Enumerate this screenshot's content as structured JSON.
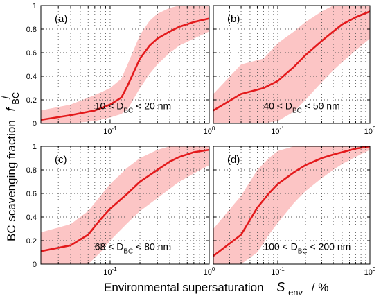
{
  "figure": {
    "ylabel_main": "BC scavenging fraction",
    "ylabel_symbol": "f",
    "ylabel_sub": "BC",
    "ylabel_sup": "j",
    "xlabel_main": "Environmental supersaturation",
    "xlabel_symbol": "S",
    "xlabel_sub": "env",
    "xlabel_unit": "/ %",
    "colors": {
      "line": "#e31a1c",
      "band": "#fcc5c5",
      "frame": "#000000",
      "grid": "#555555"
    }
  },
  "chart_data": [
    {
      "type": "area",
      "panel_label": "(a)",
      "annotation": {
        "prefix": "10 < D",
        "sub": "BC",
        "suffix": " < 20 nm"
      },
      "x_scale": "log",
      "xlim": [
        0.02,
        1
      ],
      "ylim": [
        0,
        1
      ],
      "x_tick_labels": [
        "10^-1",
        "10^0"
      ],
      "y_tick_labels": [
        "0",
        "0.2",
        "0.4",
        "0.6",
        "0.8",
        "1"
      ],
      "grid": true,
      "x": [
        0.02,
        0.04,
        0.07,
        0.1,
        0.13,
        0.15,
        0.2,
        0.25,
        0.3,
        0.4,
        0.5,
        0.7,
        1.0
      ],
      "series": [
        {
          "role": "median",
          "values": [
            0.03,
            0.07,
            0.11,
            0.16,
            0.22,
            0.32,
            0.55,
            0.66,
            0.72,
            0.78,
            0.82,
            0.86,
            0.89
          ]
        },
        {
          "role": "lower",
          "values": [
            0.0,
            0.0,
            0.02,
            0.05,
            0.08,
            0.12,
            0.3,
            0.42,
            0.5,
            0.6,
            0.66,
            0.72,
            0.78
          ]
        },
        {
          "role": "upper",
          "values": [
            0.11,
            0.16,
            0.24,
            0.3,
            0.38,
            0.5,
            0.75,
            0.87,
            0.93,
            0.98,
            1.0,
            1.0,
            1.0
          ]
        }
      ]
    },
    {
      "type": "area",
      "panel_label": "(b)",
      "annotation": {
        "prefix": "40 < D",
        "sub": "BC",
        "suffix": " < 50 nm"
      },
      "x_scale": "log",
      "xlim": [
        0.02,
        1
      ],
      "ylim": [
        0,
        1
      ],
      "x_tick_labels": [
        "10^-1",
        "10^0"
      ],
      "y_tick_labels": [
        "0",
        "0.2",
        "0.4",
        "0.6",
        "0.8",
        "1"
      ],
      "grid": true,
      "x": [
        0.02,
        0.04,
        0.07,
        0.1,
        0.15,
        0.2,
        0.3,
        0.4,
        0.5,
        0.7,
        1.0
      ],
      "series": [
        {
          "role": "median",
          "values": [
            0.11,
            0.25,
            0.3,
            0.36,
            0.48,
            0.58,
            0.7,
            0.78,
            0.84,
            0.9,
            0.95
          ]
        },
        {
          "role": "lower",
          "values": [
            0.0,
            0.0,
            0.0,
            0.02,
            0.1,
            0.2,
            0.35,
            0.45,
            0.52,
            0.62,
            0.72
          ]
        },
        {
          "role": "upper",
          "values": [
            0.25,
            0.5,
            0.55,
            0.68,
            0.78,
            0.86,
            0.95,
            1.0,
            1.0,
            1.0,
            1.0
          ]
        }
      ]
    },
    {
      "type": "area",
      "panel_label": "(c)",
      "annotation": {
        "prefix": "68 < D",
        "sub": "BC",
        "suffix": " < 80 nm"
      },
      "x_scale": "log",
      "xlim": [
        0.02,
        1
      ],
      "ylim": [
        0,
        1
      ],
      "x_tick_labels": [
        "10^-1",
        "10^0"
      ],
      "y_tick_labels": [
        "0",
        "0.2",
        "0.4",
        "0.6",
        "0.8",
        "1"
      ],
      "grid": true,
      "x": [
        0.02,
        0.04,
        0.06,
        0.08,
        0.1,
        0.15,
        0.2,
        0.3,
        0.4,
        0.5,
        0.7,
        1.0
      ],
      "series": [
        {
          "role": "median",
          "values": [
            0.11,
            0.16,
            0.25,
            0.38,
            0.47,
            0.6,
            0.7,
            0.8,
            0.87,
            0.91,
            0.95,
            0.97
          ]
        },
        {
          "role": "lower",
          "values": [
            0.0,
            0.0,
            0.0,
            0.1,
            0.2,
            0.35,
            0.45,
            0.56,
            0.64,
            0.7,
            0.77,
            0.84
          ]
        },
        {
          "role": "upper",
          "values": [
            0.27,
            0.34,
            0.45,
            0.58,
            0.68,
            0.82,
            0.9,
            0.97,
            1.0,
            1.0,
            1.0,
            1.0
          ]
        }
      ]
    },
    {
      "type": "area",
      "panel_label": "(d)",
      "annotation": {
        "prefix": "100 < D",
        "sub": "BC",
        "suffix": " < 200 nm"
      },
      "x_scale": "log",
      "xlim": [
        0.02,
        1
      ],
      "ylim": [
        0,
        1
      ],
      "x_tick_labels": [
        "10^-1",
        "10^0"
      ],
      "y_tick_labels": [
        "0",
        "0.2",
        "0.4",
        "0.6",
        "0.8",
        "1"
      ],
      "grid": true,
      "x": [
        0.02,
        0.04,
        0.06,
        0.08,
        0.1,
        0.15,
        0.2,
        0.3,
        0.4,
        0.5,
        0.7,
        1.0
      ],
      "series": [
        {
          "role": "median",
          "values": [
            0.07,
            0.25,
            0.48,
            0.6,
            0.68,
            0.78,
            0.84,
            0.9,
            0.93,
            0.95,
            0.98,
            1.0
          ]
        },
        {
          "role": "lower",
          "values": [
            0.0,
            0.0,
            0.1,
            0.25,
            0.35,
            0.52,
            0.62,
            0.73,
            0.8,
            0.85,
            0.91,
            0.97
          ]
        },
        {
          "role": "upper",
          "values": [
            0.3,
            0.58,
            0.8,
            0.9,
            0.96,
            1.0,
            1.0,
            1.0,
            1.0,
            1.0,
            1.0,
            1.0
          ]
        }
      ]
    }
  ]
}
